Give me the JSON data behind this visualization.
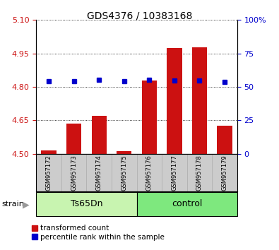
{
  "title": "GDS4376 / 10383168",
  "samples": [
    "GSM957172",
    "GSM957173",
    "GSM957174",
    "GSM957175",
    "GSM957176",
    "GSM957177",
    "GSM957178",
    "GSM957179"
  ],
  "red_values": [
    4.515,
    4.635,
    4.67,
    4.513,
    4.83,
    4.975,
    4.978,
    4.625
  ],
  "blue_values": [
    4.825,
    4.826,
    4.832,
    4.824,
    4.831,
    4.828,
    4.829,
    4.822
  ],
  "ylim": [
    4.5,
    5.1
  ],
  "y_ticks_left": [
    4.5,
    4.65,
    4.8,
    4.95,
    5.1
  ],
  "y_ticks_right": [
    0,
    25,
    50,
    75,
    100
  ],
  "y_ticks_right_labels": [
    "0",
    "25",
    "50",
    "75",
    "100%"
  ],
  "bar_color": "#cc1111",
  "dot_color": "#0000cc",
  "ts65_color": "#c8f4b0",
  "control_color": "#7ee87e",
  "y_left_color": "#cc1111",
  "y_right_color": "#0000cc",
  "bar_bottom": 4.5,
  "bar_width": 0.6,
  "dot_size": 22,
  "legend_red": "transformed count",
  "legend_blue": "percentile rank within the sample",
  "group1_label": "Ts65Dn",
  "group2_label": "control",
  "strain_label": "strain"
}
